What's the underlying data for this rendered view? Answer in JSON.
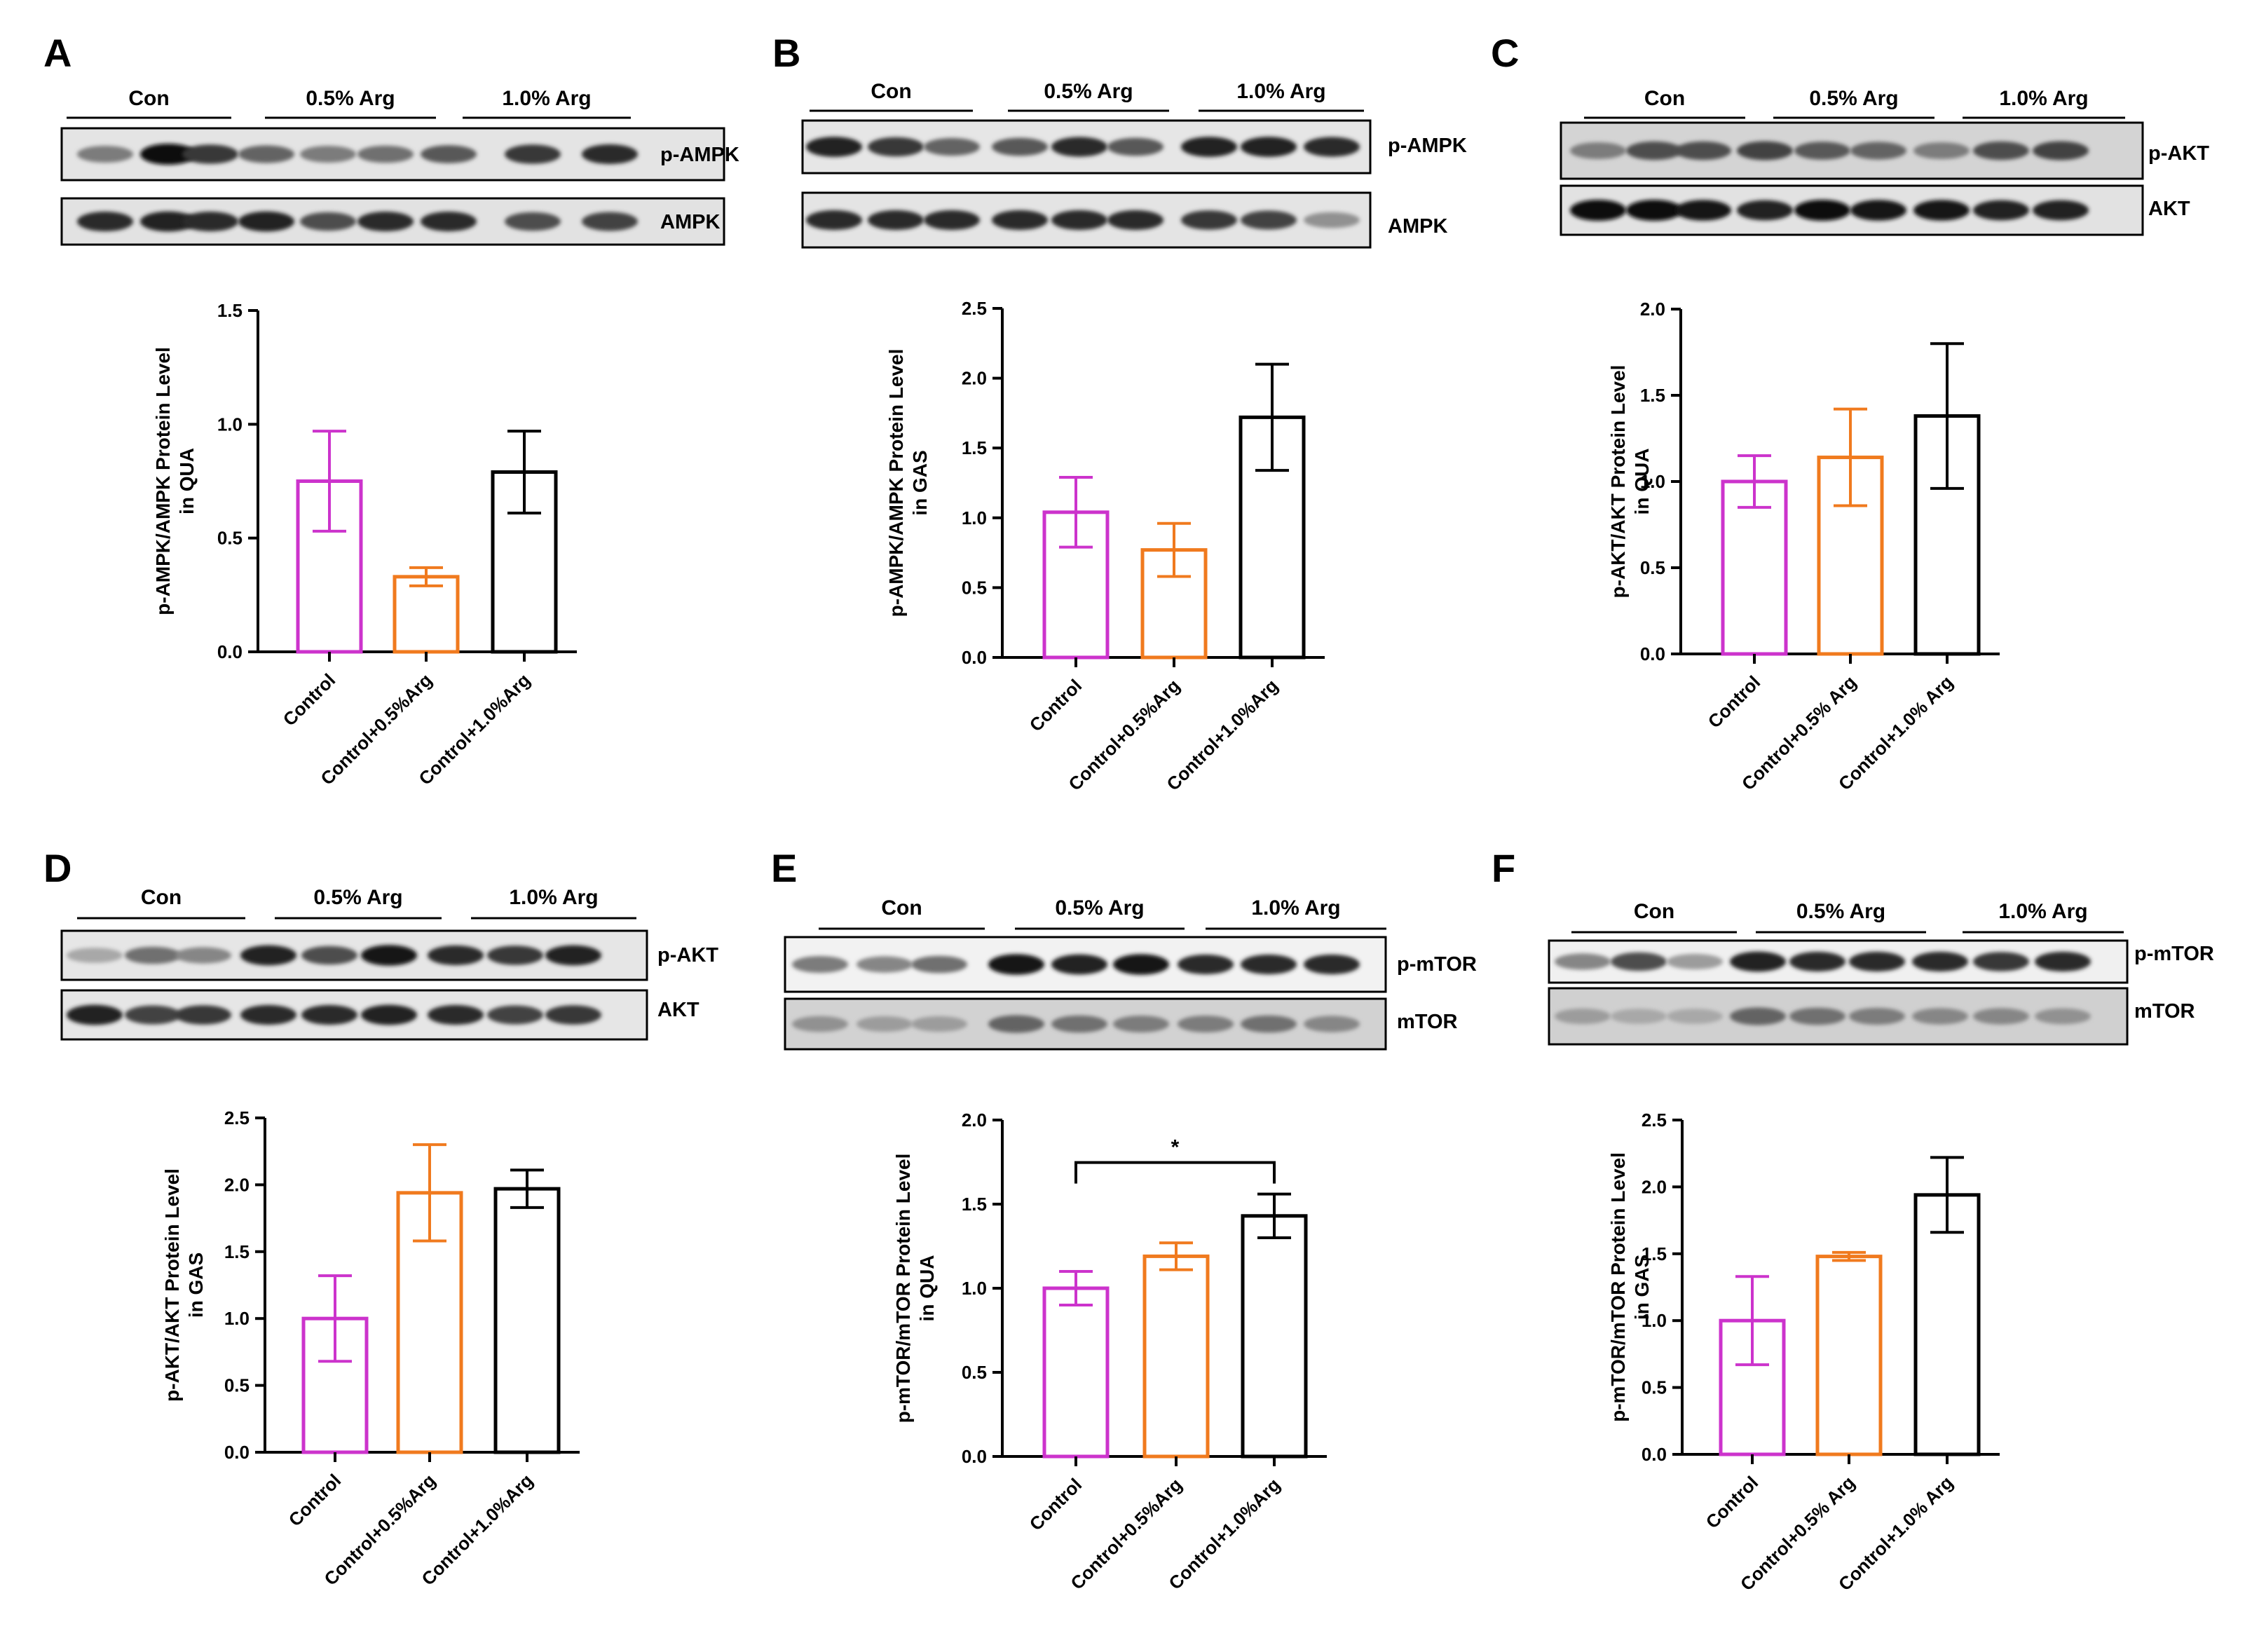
{
  "colors": {
    "control": "#CC33CC",
    "arg05": "#F07A1E",
    "arg10": "#000000"
  },
  "panels": [
    {
      "label": "A",
      "groups": [
        "Con",
        "0.5% Arg",
        "1.0% Arg"
      ],
      "bands": [
        "p-AMPK",
        "AMPK"
      ],
      "chart_data": {
        "type": "bar",
        "categories": [
          "Control",
          "Control+0.5%Arg",
          "Control+1.0%Arg"
        ],
        "values": [
          0.75,
          0.33,
          0.79
        ],
        "errors": [
          0.22,
          0.04,
          0.18
        ],
        "ylabel": [
          "p-AMPK/AMPK Protein Level",
          "in QUA"
        ],
        "ylim": [
          0,
          1.5
        ],
        "yticks": [
          "0.0",
          "0.5",
          "1.0",
          "1.5"
        ],
        "ytick_values": [
          0,
          0.5,
          1.0,
          1.5
        ]
      }
    },
    {
      "label": "B",
      "groups": [
        "Con",
        "0.5% Arg",
        "1.0% Arg"
      ],
      "bands": [
        "p-AMPK",
        "AMPK"
      ],
      "chart_data": {
        "type": "bar",
        "categories": [
          "Control",
          "Control+0.5%Arg",
          "Control+1.0%Arg"
        ],
        "values": [
          1.04,
          0.77,
          1.72
        ],
        "errors": [
          0.25,
          0.19,
          0.38
        ],
        "ylabel": [
          "p-AMPK/AMPK Protein Level",
          "in GAS"
        ],
        "ylim": [
          0,
          2.5
        ],
        "yticks": [
          "0.0",
          "0.5",
          "1.0",
          "1.5",
          "2.0",
          "2.5"
        ],
        "ytick_values": [
          0,
          0.5,
          1.0,
          1.5,
          2.0,
          2.5
        ]
      }
    },
    {
      "label": "C",
      "groups": [
        "Con",
        "0.5% Arg",
        "1.0% Arg"
      ],
      "bands": [
        "p-AKT",
        "AKT"
      ],
      "chart_data": {
        "type": "bar",
        "categories": [
          "Control",
          "Control+0.5% Arg",
          "Control+1.0% Arg"
        ],
        "values": [
          1.0,
          1.14,
          1.38
        ],
        "errors": [
          0.15,
          0.28,
          0.42
        ],
        "ylabel": [
          "p-AKT/AKT Protein Level",
          "in QUA"
        ],
        "ylim": [
          0,
          2.0
        ],
        "yticks": [
          "0.0",
          "0.5",
          "1.0",
          "1.5",
          "2.0"
        ],
        "ytick_values": [
          0,
          0.5,
          1.0,
          1.5,
          2.0
        ]
      }
    },
    {
      "label": "D",
      "groups": [
        "Con",
        "0.5% Arg",
        "1.0% Arg"
      ],
      "bands": [
        "p-AKT",
        "AKT"
      ],
      "chart_data": {
        "type": "bar",
        "categories": [
          "Control",
          "Control+0.5%Arg",
          "Control+1.0%Arg"
        ],
        "values": [
          1.0,
          1.94,
          1.97
        ],
        "errors": [
          0.32,
          0.36,
          0.14
        ],
        "ylabel": [
          "p-AKT/AKT Protein Level",
          "in GAS"
        ],
        "ylim": [
          0,
          2.5
        ],
        "yticks": [
          "0.0",
          "0.5",
          "1.0",
          "1.5",
          "2.0",
          "2.5"
        ],
        "ytick_values": [
          0,
          0.5,
          1.0,
          1.5,
          2.0,
          2.5
        ]
      }
    },
    {
      "label": "E",
      "groups": [
        "Con",
        "0.5% Arg",
        "1.0% Arg"
      ],
      "bands": [
        "p-mTOR",
        "mTOR"
      ],
      "chart_data": {
        "type": "bar",
        "categories": [
          "Control",
          "Control+0.5%Arg",
          "Control+1.0%Arg"
        ],
        "values": [
          1.0,
          1.19,
          1.43
        ],
        "errors": [
          0.1,
          0.08,
          0.13
        ],
        "ylabel": [
          "p-mTOR/mTOR Protein Level",
          "in QUA"
        ],
        "ylim": [
          0,
          2.0
        ],
        "yticks": [
          "0.0",
          "0.5",
          "1.0",
          "1.5",
          "2.0"
        ],
        "ytick_values": [
          0,
          0.5,
          1.0,
          1.5,
          2.0
        ],
        "significance": {
          "from": 0,
          "to": 2,
          "label": "*"
        }
      }
    },
    {
      "label": "F",
      "groups": [
        "Con",
        "0.5% Arg",
        "1.0% Arg"
      ],
      "bands": [
        "p-mTOR",
        "mTOR"
      ],
      "chart_data": {
        "type": "bar",
        "categories": [
          "Control",
          "Control+0.5% Arg",
          "Control+1.0% Arg"
        ],
        "values": [
          1.0,
          1.48,
          1.94
        ],
        "errors": [
          0.33,
          0.03,
          0.28
        ],
        "ylabel": [
          "p-mTOR/mTOR Protein Level",
          "in GAS"
        ],
        "ylim": [
          0,
          2.5
        ],
        "yticks": [
          "0.0",
          "0.5",
          "1.0",
          "1.5",
          "2.0",
          "2.5"
        ],
        "ytick_values": [
          0,
          0.5,
          1.0,
          1.5,
          2.0,
          2.5
        ]
      }
    }
  ]
}
